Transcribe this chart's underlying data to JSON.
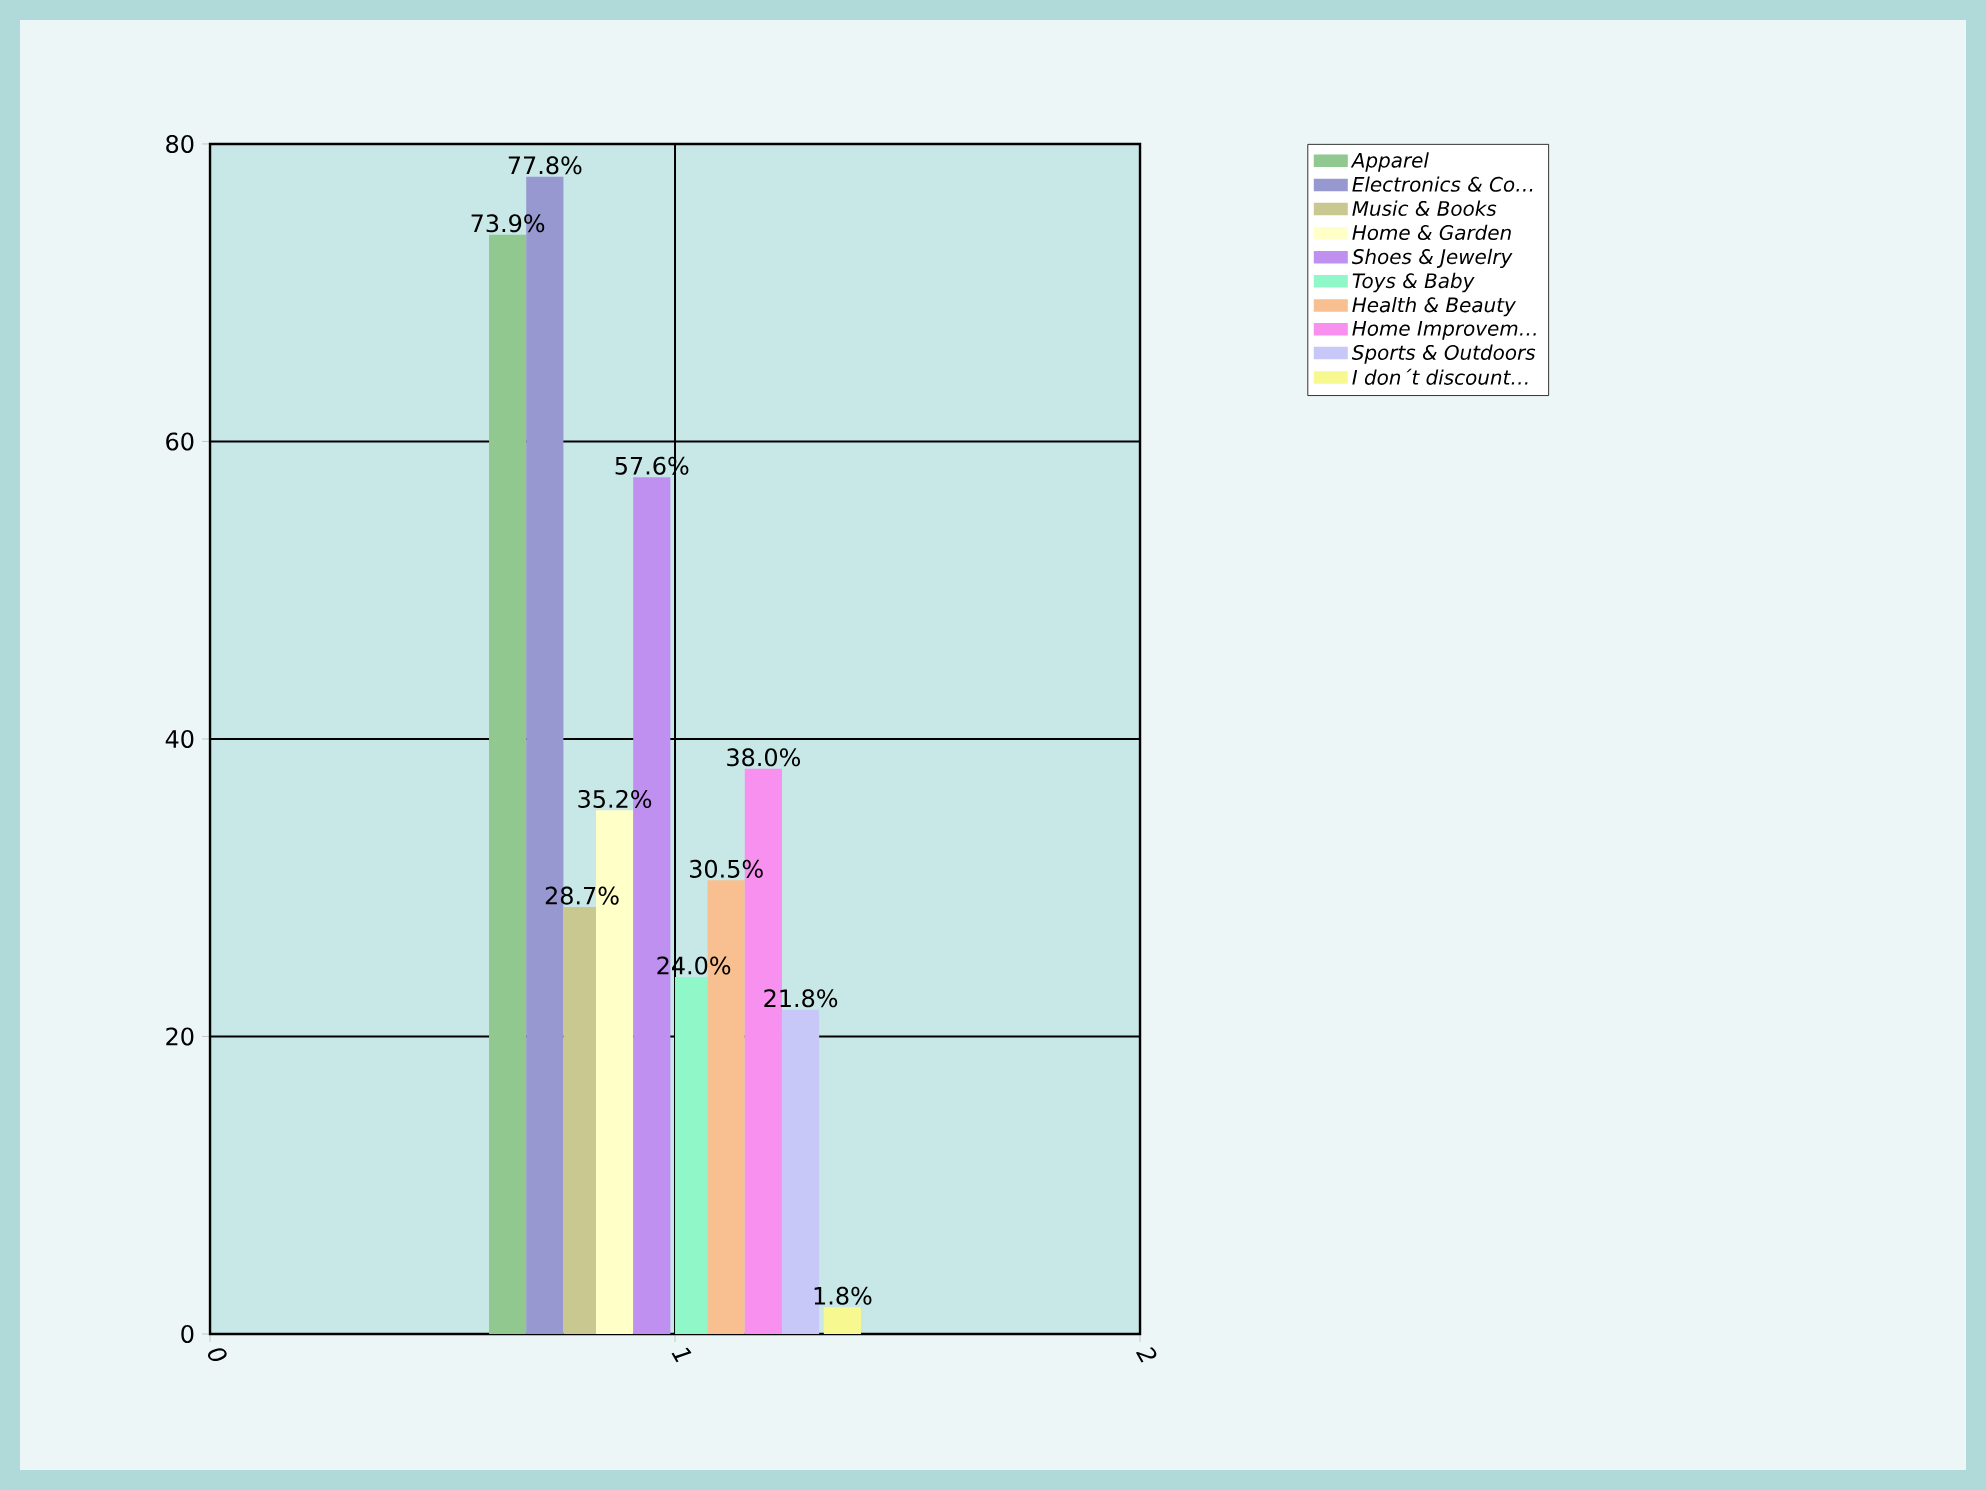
{
  "chart_data": {
    "type": "bar",
    "xlim": [
      0,
      2
    ],
    "xticks": [
      0,
      1,
      2
    ],
    "ylim": [
      0,
      80
    ],
    "yticks": [
      0,
      20,
      40,
      60,
      80
    ],
    "grid": true,
    "legend": "top right",
    "series": [
      {
        "name": "Apparel",
        "color": "#90c890",
        "x": [
          0.64
        ],
        "values": [
          73.9
        ],
        "value_labels": [
          "73.9%"
        ]
      },
      {
        "name": "Electronics & Co…",
        "color": "#9898d0",
        "x": [
          0.72
        ],
        "values": [
          77.8
        ],
        "value_labels": [
          "77.8%"
        ]
      },
      {
        "name": "Music & Books",
        "color": "#c8c890",
        "x": [
          0.8
        ],
        "values": [
          28.7
        ],
        "value_labels": [
          "28.7%"
        ]
      },
      {
        "name": "Home & Garden",
        "color": "#ffffc8",
        "x": [
          0.87
        ],
        "values": [
          35.2
        ],
        "value_labels": [
          "35.2%"
        ]
      },
      {
        "name": "Shoes & Jewelry",
        "color": "#c090f0",
        "x": [
          0.95
        ],
        "values": [
          57.6
        ],
        "value_labels": [
          "57.6%"
        ]
      },
      {
        "name": "Toys & Baby",
        "color": "#90f8c8",
        "x": [
          1.04
        ],
        "values": [
          24.0
        ],
        "value_labels": [
          "24.0%"
        ]
      },
      {
        "name": "Health & Beauty",
        "color": "#f8c090",
        "x": [
          1.11
        ],
        "values": [
          30.5
        ],
        "value_labels": [
          "30.5%"
        ]
      },
      {
        "name": "Home Improvem…",
        "color": "#f890f0",
        "x": [
          1.19
        ],
        "values": [
          38.0
        ],
        "value_labels": [
          "38.0%"
        ]
      },
      {
        "name": "Sports & Outdoors",
        "color": "#c8c8f8",
        "x": [
          1.27
        ],
        "values": [
          21.8
        ],
        "value_labels": [
          "21.8%"
        ]
      },
      {
        "name": "I don´t discount…",
        "color": "#f8f890",
        "x": [
          1.36
        ],
        "values": [
          1.8
        ],
        "value_labels": [
          "1.8%"
        ]
      }
    ]
  }
}
